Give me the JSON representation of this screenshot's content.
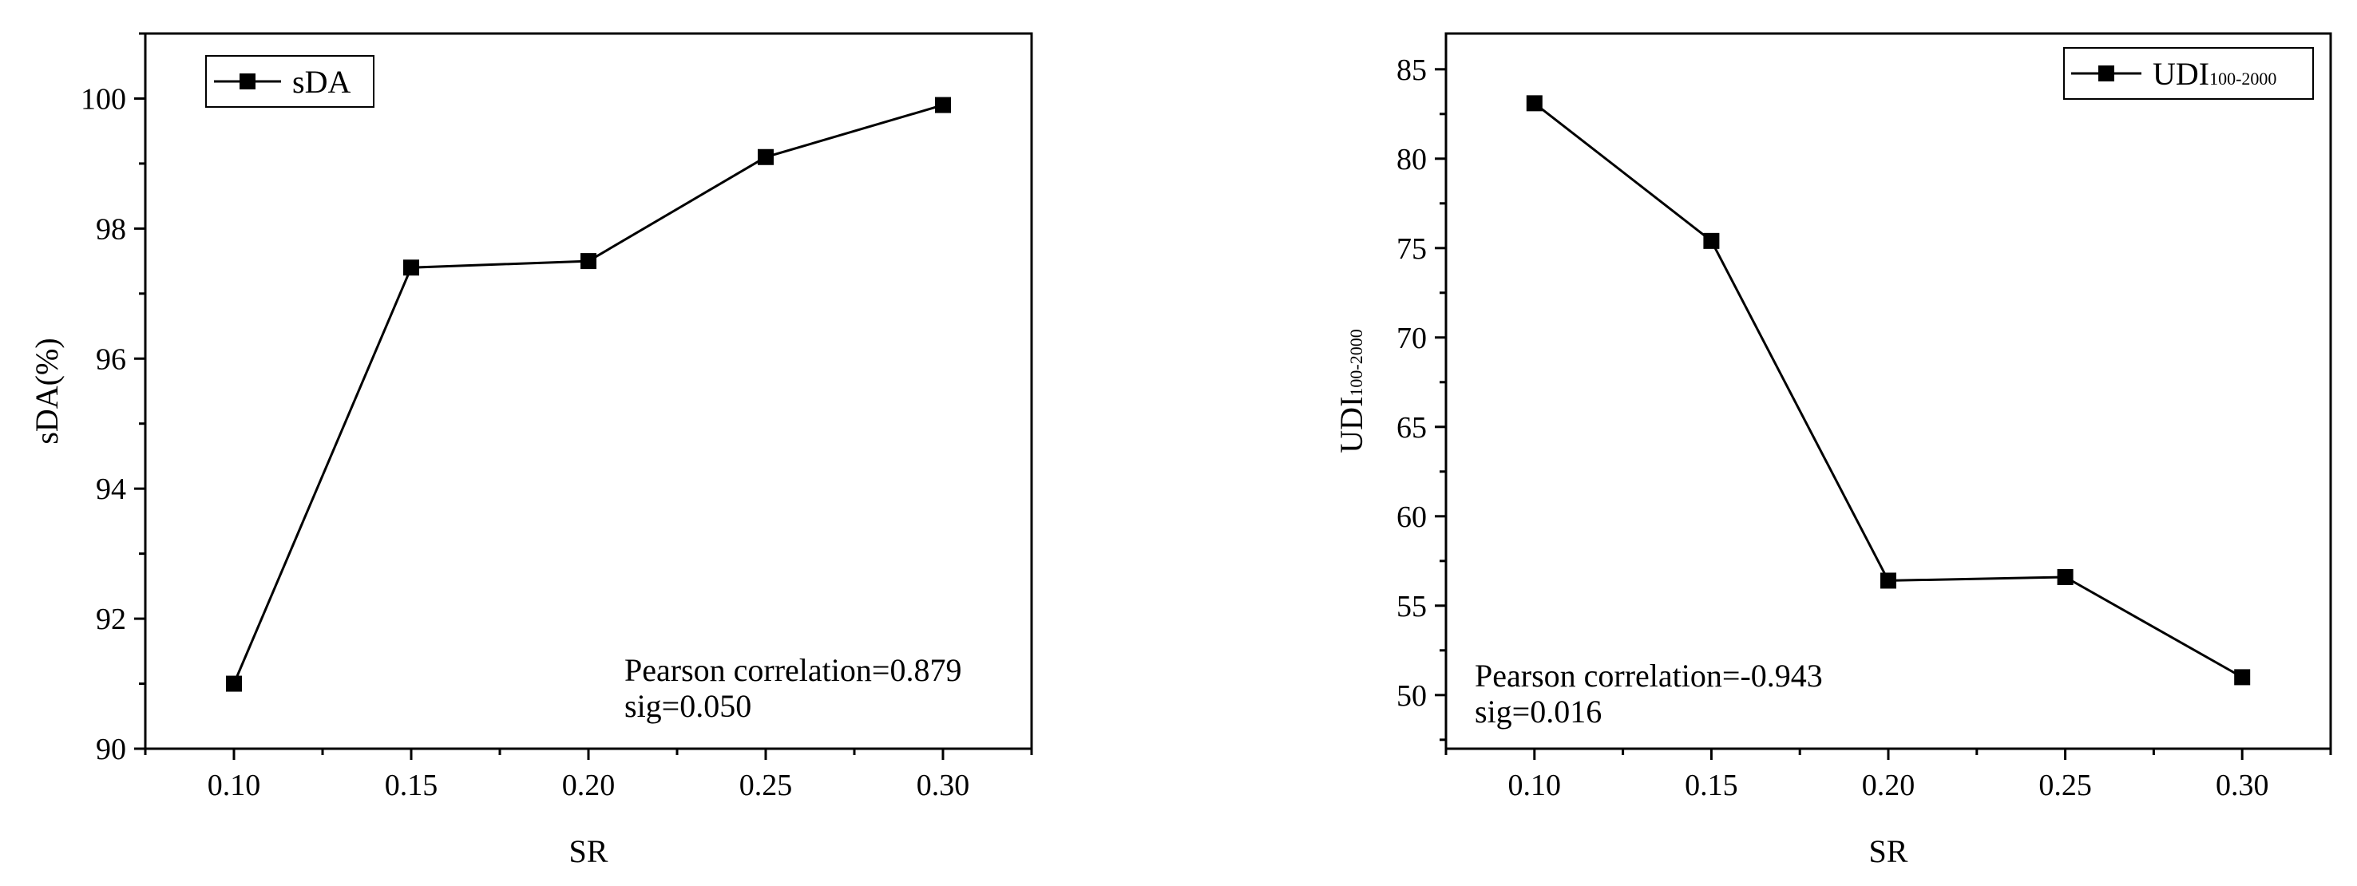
{
  "chart_data": [
    {
      "type": "line",
      "xlabel": "SR",
      "ylabel": "sDA(%)",
      "xlim": [
        0.075,
        0.325
      ],
      "ylim": [
        90,
        101
      ],
      "x_ticks": [
        "0.10",
        "0.15",
        "0.20",
        "0.25",
        "0.30"
      ],
      "y_ticks": [
        "90",
        "92",
        "94",
        "96",
        "98",
        "100"
      ],
      "x": [
        0.1,
        0.15,
        0.2,
        0.25,
        0.3
      ],
      "series": [
        {
          "name": "sDA",
          "values": [
            91.0,
            97.4,
            97.5,
            99.1,
            99.9
          ]
        }
      ],
      "legend_position": "top-left",
      "annotations": [
        "Pearson correlation=0.879",
        "sig=0.050"
      ],
      "marker": "square",
      "color": "#000000"
    },
    {
      "type": "line",
      "xlabel": "SR",
      "ylabel_main": "UDI",
      "ylabel_sub": "100-2000",
      "xlim": [
        0.075,
        0.325
      ],
      "ylim": [
        47,
        87
      ],
      "x_ticks": [
        "0.10",
        "0.15",
        "0.20",
        "0.25",
        "0.30"
      ],
      "y_ticks": [
        "50",
        "55",
        "60",
        "65",
        "70",
        "75",
        "80",
        "85"
      ],
      "x": [
        0.1,
        0.15,
        0.2,
        0.25,
        0.3
      ],
      "series": [
        {
          "name_main": "UDI",
          "name_sub": "100-2000",
          "values": [
            83.1,
            75.4,
            56.4,
            56.6,
            51.0
          ]
        }
      ],
      "legend_position": "top-right",
      "annotations": [
        "Pearson correlation=-0.943",
        "sig=0.016"
      ],
      "marker": "square",
      "color": "#000000"
    }
  ]
}
